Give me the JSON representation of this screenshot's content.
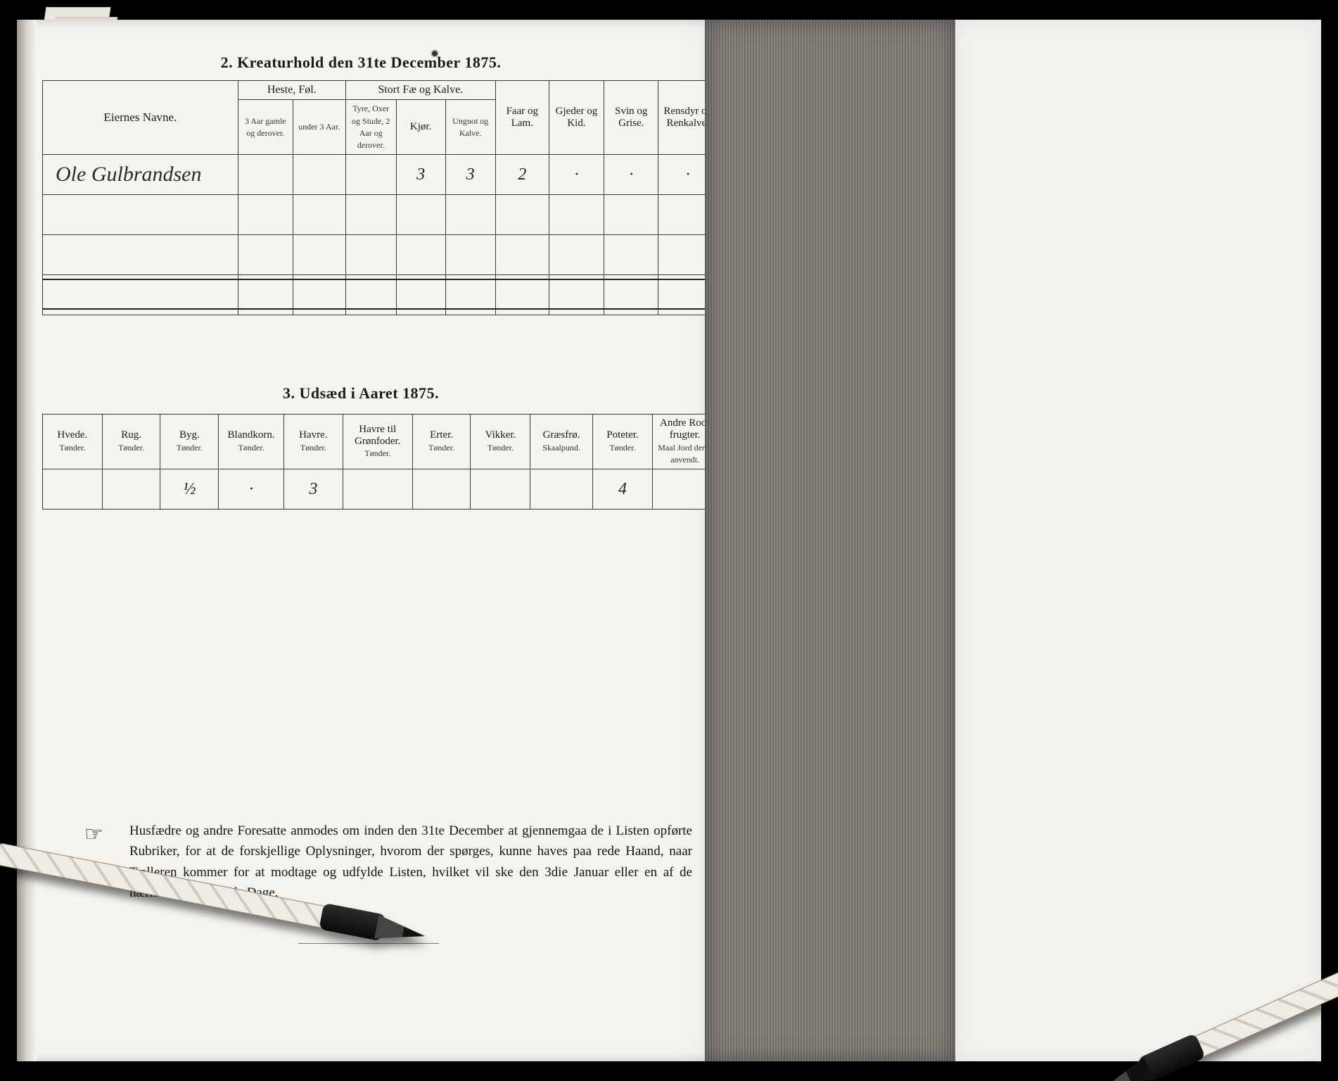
{
  "colors": {
    "paper": "#f6f4ef",
    "ink": "#1a1a1a",
    "border": "#3a3a3a",
    "gutter_dark": "#6f6d66",
    "gutter_light": "#8b8880",
    "background": "#000000"
  },
  "sec1": {
    "title": "2.  Kreaturhold den 31te December 1875.",
    "headers": {
      "owners": "Eiernes Navne.",
      "heste_group": "Heste, Føl.",
      "heste_a": "3 Aar gamle og derover.",
      "heste_b": "under 3 Aar.",
      "stort_group": "Stort Fæ og Kalve.",
      "stort_a": "Tyre, Oxer og Stude, 2 Aar og derover.",
      "stort_b": "Kjør.",
      "stort_c": "Ungnot og Kalve.",
      "faar": "Faar og Lam.",
      "gjeder": "Gjeder og Kid.",
      "svin": "Svin og Grise.",
      "rensdyr": "Rensdyr og Renkalve."
    },
    "rows": [
      {
        "owner": "Ole Gulbrandsen",
        "heste_a": "",
        "heste_b": "",
        "stort_a": "",
        "stort_b": "3",
        "stort_c": "3",
        "faar": "2",
        "gjeder": "·",
        "svin": "·",
        "rensdyr": "·"
      },
      {
        "owner": "",
        "heste_a": "",
        "heste_b": "",
        "stort_a": "",
        "stort_b": "",
        "stort_c": "",
        "faar": "",
        "gjeder": "",
        "svin": "",
        "rensdyr": ""
      },
      {
        "owner": "",
        "heste_a": "",
        "heste_b": "",
        "stort_a": "",
        "stort_b": "",
        "stort_c": "",
        "faar": "",
        "gjeder": "",
        "svin": "",
        "rensdyr": ""
      },
      {
        "owner": "",
        "heste_a": "",
        "heste_b": "",
        "stort_a": "",
        "stort_b": "",
        "stort_c": "",
        "faar": "",
        "gjeder": "",
        "svin": "",
        "rensdyr": ""
      }
    ]
  },
  "sec2": {
    "title": "3.  Udsæd i Aaret 1875.",
    "cols": [
      {
        "h": "Hvede.",
        "u": "Tønder."
      },
      {
        "h": "Rug.",
        "u": "Tønder."
      },
      {
        "h": "Byg.",
        "u": "Tønder."
      },
      {
        "h": "Blandkorn.",
        "u": "Tønder."
      },
      {
        "h": "Havre.",
        "u": "Tønder."
      },
      {
        "h": "Havre til Grønfoder.",
        "u": "Tønder."
      },
      {
        "h": "Erter.",
        "u": "Tønder."
      },
      {
        "h": "Vikker.",
        "u": "Tønder."
      },
      {
        "h": "Græsfrø.",
        "u": "Skaalpund."
      },
      {
        "h": "Poteter.",
        "u": "Tønder."
      },
      {
        "h": "Andre Rod-frugter.",
        "u": "Maal Jord dertil anvendt."
      }
    ],
    "row": [
      "",
      "",
      "½",
      "·",
      "3",
      "",
      "",
      "",
      "",
      "4",
      ""
    ]
  },
  "footnote": "Husfædre og andre Foresatte anmodes om inden den 31te December at gjennemgaa de i Listen opførte Rubriker, for at de forskjellige Oplysninger, hvorom der spørges, kunne haves paa rede Haand, naar Tælleren kommer for at modtage og udfylde Listen, hvilket vil ske den 3die Januar eller en af de nærmest paafølgende Dage."
}
